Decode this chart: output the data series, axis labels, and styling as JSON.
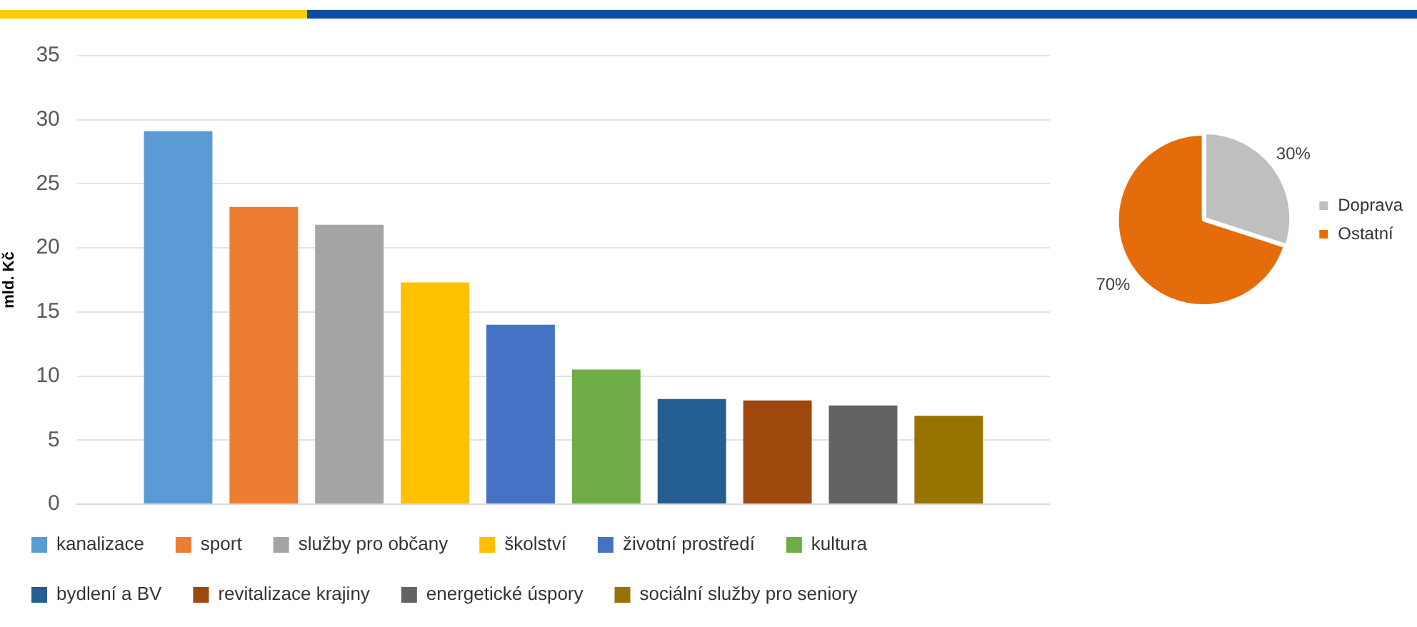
{
  "chart_data": [
    {
      "type": "bar",
      "ylabel": "mld. Kč",
      "categories": [
        null
      ],
      "series": [
        {
          "name": "kanalizace",
          "color": "#5b9bd5",
          "values": [
            29.1
          ]
        },
        {
          "name": "sport",
          "color": "#ed7d31",
          "values": [
            23.2
          ]
        },
        {
          "name": "služby pro občany",
          "color": "#a5a5a5",
          "values": [
            21.8
          ]
        },
        {
          "name": "školství",
          "color": "#ffc000",
          "values": [
            17.3
          ]
        },
        {
          "name": "životní prostředí",
          "color": "#4472c4",
          "values": [
            14
          ]
        },
        {
          "name": "kultura",
          "color": "#70ad47",
          "values": [
            10.5
          ]
        },
        {
          "name": "bydlení a BV",
          "color": "#255e91",
          "values": [
            8.2
          ]
        },
        {
          "name": "revitalizace krajiny",
          "color": "#9e480e",
          "values": [
            8.1
          ]
        },
        {
          "name": "energetické úspory",
          "color": "#636363",
          "values": [
            7.7
          ]
        },
        {
          "name": "sociální služby pro seniory",
          "color": "#997300",
          "values": [
            6.9
          ]
        }
      ],
      "ylim": [
        0,
        35
      ],
      "yticks": [
        0,
        5,
        10,
        15,
        20,
        25,
        30,
        35
      ],
      "grid": "y",
      "legend": "bottom",
      "tick_labels": "y"
    },
    {
      "type": "pie",
      "categories": [
        "Doprava",
        "Ostatní"
      ],
      "values": [
        30,
        70
      ],
      "colors": [
        "#bfbfbf",
        "#e46c0a"
      ],
      "value_labels": [
        "30%",
        "70%"
      ],
      "legend": "right"
    }
  ]
}
